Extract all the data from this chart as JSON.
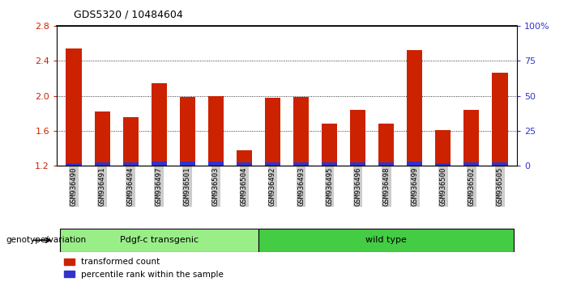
{
  "title": "GDS5320 / 10484604",
  "categories": [
    "GSM936490",
    "GSM936491",
    "GSM936494",
    "GSM936497",
    "GSM936501",
    "GSM936503",
    "GSM936504",
    "GSM936492",
    "GSM936493",
    "GSM936495",
    "GSM936496",
    "GSM936498",
    "GSM936499",
    "GSM936500",
    "GSM936502",
    "GSM936505"
  ],
  "red_values": [
    2.54,
    1.82,
    1.76,
    2.14,
    1.99,
    2.0,
    1.38,
    1.98,
    1.99,
    1.68,
    1.84,
    1.68,
    2.52,
    1.61,
    1.84,
    2.26
  ],
  "blue_values": [
    0.03,
    0.04,
    0.04,
    0.05,
    0.05,
    0.05,
    0.04,
    0.04,
    0.04,
    0.04,
    0.04,
    0.04,
    0.05,
    0.03,
    0.04,
    0.04
  ],
  "ymin": 1.2,
  "ymax": 2.8,
  "yticks": [
    1.2,
    1.6,
    2.0,
    2.4,
    2.8
  ],
  "right_yticks": [
    0,
    25,
    50,
    75,
    100
  ],
  "right_ytick_labels": [
    "0",
    "25",
    "50",
    "75",
    "100%"
  ],
  "grid_values": [
    1.6,
    2.0,
    2.4
  ],
  "bar_color_red": "#cc2200",
  "bar_color_blue": "#3333cc",
  "group1_label": "Pdgf-c transgenic",
  "group2_label": "wild type",
  "group1_color": "#99ee88",
  "group2_color": "#44cc44",
  "group1_count": 7,
  "group2_count": 9,
  "xlabel_left": "genotype/variation",
  "legend_red": "transformed count",
  "legend_blue": "percentile rank within the sample",
  "bar_width": 0.55,
  "ytick_color_left": "#cc2200",
  "ytick_color_right": "#3333cc",
  "background_color": "#ffffff",
  "tick_label_bg": "#cccccc"
}
